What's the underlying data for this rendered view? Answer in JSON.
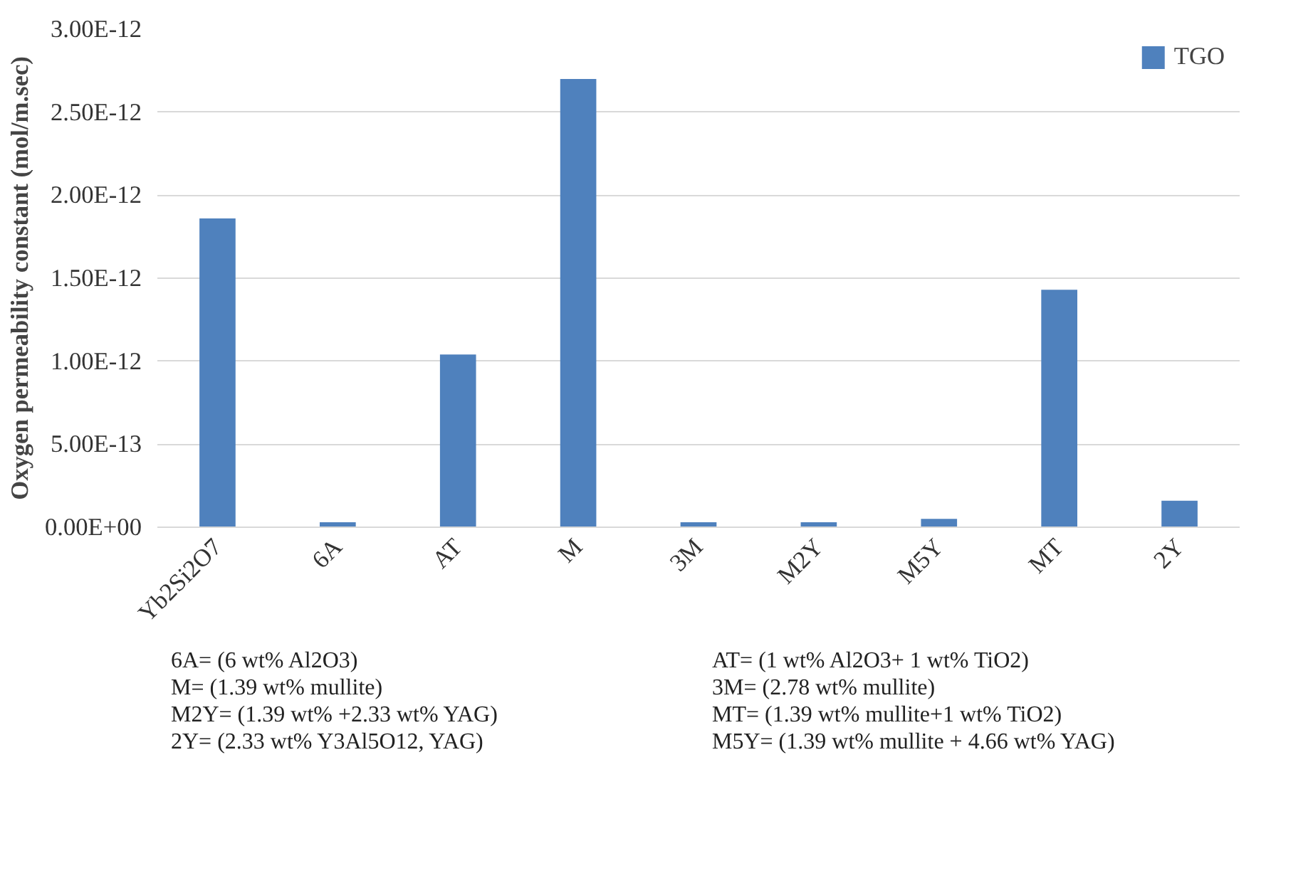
{
  "chart_data": {
    "type": "bar",
    "ylabel": "Oxygen permeability constant (mol/m.sec)",
    "categories": [
      "Yb2Si2O7",
      "6A",
      "AT",
      "M",
      "3M",
      "M2Y",
      "M5Y",
      "MT",
      "2Y"
    ],
    "series": [
      {
        "name": "TGO",
        "color": "#4f81bd",
        "values": [
          1.86e-12,
          3e-14,
          1.04e-12,
          2.7e-12,
          3e-14,
          3e-14,
          5e-14,
          1.43e-12,
          1.6e-13
        ]
      }
    ],
    "ylim": [
      0,
      3e-12
    ],
    "yticks": [
      {
        "value": 0,
        "label": "0.00E+00"
      },
      {
        "value": 5e-13,
        "label": "5.00E-13"
      },
      {
        "value": 1e-12,
        "label": "1.00E-12"
      },
      {
        "value": 1.5e-12,
        "label": "1.50E-12"
      },
      {
        "value": 2e-12,
        "label": "2.00E-12"
      },
      {
        "value": 2.5e-12,
        "label": "2.50E-12"
      },
      {
        "value": 3e-12,
        "label": "3.00E-12"
      }
    ],
    "grid": "y",
    "legend": "top right",
    "annotations": [
      "6A= (6 wt% Al2O3)",
      "AT= (1 wt% Al2O3+ 1 wt% TiO2)",
      "M= (1.39 wt% mullite)",
      "3M= (2.78 wt% mullite)",
      "M2Y= (1.39 wt% +2.33 wt% YAG)",
      "MT= (1.39 wt% mullite+1  wt% TiO2)",
      "2Y= (2.33 wt% Y3Al5O12, YAG)",
      "M5Y= (1.39 wt% mullite + 4.66 wt% YAG)"
    ]
  }
}
